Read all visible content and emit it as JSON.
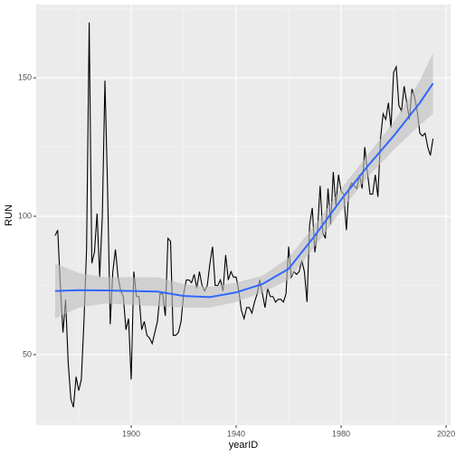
{
  "chart_data": {
    "type": "line",
    "x_label": "yearID",
    "y_label": "RUN",
    "x": [
      1871,
      1872,
      1873,
      1874,
      1875,
      1876,
      1877,
      1878,
      1879,
      1880,
      1881,
      1882,
      1883,
      1884,
      1885,
      1886,
      1887,
      1888,
      1889,
      1890,
      1891,
      1892,
      1893,
      1894,
      1895,
      1896,
      1897,
      1898,
      1899,
      1900,
      1901,
      1902,
      1903,
      1904,
      1905,
      1906,
      1907,
      1908,
      1909,
      1910,
      1911,
      1912,
      1913,
      1914,
      1915,
      1916,
      1917,
      1918,
      1919,
      1920,
      1921,
      1922,
      1923,
      1924,
      1925,
      1926,
      1927,
      1928,
      1929,
      1930,
      1931,
      1932,
      1933,
      1934,
      1935,
      1936,
      1937,
      1938,
      1939,
      1940,
      1941,
      1942,
      1943,
      1944,
      1945,
      1946,
      1947,
      1948,
      1949,
      1950,
      1951,
      1952,
      1953,
      1954,
      1955,
      1956,
      1957,
      1958,
      1959,
      1960,
      1961,
      1962,
      1963,
      1964,
      1965,
      1966,
      1967,
      1968,
      1969,
      1970,
      1971,
      1972,
      1973,
      1974,
      1975,
      1976,
      1977,
      1978,
      1979,
      1980,
      1981,
      1982,
      1983,
      1984,
      1985,
      1986,
      1987,
      1988,
      1989,
      1990,
      1991,
      1992,
      1993,
      1994,
      1995,
      1996,
      1997,
      1998,
      1999,
      2000,
      2001,
      2002,
      2003,
      2004,
      2005,
      2006,
      2007,
      2008,
      2009,
      2010,
      2011,
      2012,
      2013,
      2014,
      2015
    ],
    "values": [
      93,
      95,
      75,
      58,
      70,
      47,
      34,
      31,
      42,
      37,
      41,
      62,
      88,
      170,
      83,
      87,
      101,
      78,
      100,
      149,
      110,
      61,
      80,
      88,
      78,
      73,
      71,
      59,
      63,
      41,
      80,
      71,
      71,
      59,
      62,
      57,
      56,
      54,
      58,
      62,
      72,
      72,
      64,
      92,
      91,
      57,
      57,
      58,
      62,
      72,
      77,
      77,
      76,
      79,
      74,
      80,
      75,
      73,
      75,
      83,
      89,
      75,
      75,
      77,
      73,
      86,
      77,
      80,
      78,
      78,
      73,
      66,
      63,
      67,
      67,
      65,
      69,
      72,
      77,
      72,
      67,
      74,
      71,
      71,
      69,
      70,
      70,
      69,
      72,
      89,
      78,
      80,
      79,
      80,
      84,
      80,
      69,
      97,
      103,
      87,
      95,
      111,
      94,
      92,
      110,
      97,
      116,
      104,
      115,
      109,
      108,
      95,
      110,
      112,
      111,
      110,
      115,
      110,
      125,
      116,
      108,
      108,
      115,
      107,
      128,
      137,
      135,
      141,
      132,
      152,
      154,
      140,
      138,
      147,
      141,
      135,
      146,
      143,
      138,
      130,
      129,
      130,
      125,
      122,
      128
    ],
    "color": "#000000",
    "smooth": {
      "x": [
        1871,
        1880,
        1890,
        1900,
        1910,
        1920,
        1930,
        1940,
        1950,
        1960,
        1970,
        1980,
        1990,
        2000,
        2010,
        2015
      ],
      "values": [
        73,
        73.3,
        73.2,
        73,
        72.8,
        71.2,
        70.8,
        72.5,
        75.5,
        81,
        93,
        106,
        118,
        129,
        141,
        148
      ],
      "lower": [
        63,
        67,
        68.5,
        68,
        67.5,
        67,
        67,
        69,
        72.5,
        77,
        89,
        102,
        114,
        124,
        133,
        137
      ],
      "upper": [
        83,
        79.5,
        78,
        78,
        78,
        75.5,
        74.5,
        76,
        78.5,
        85,
        97,
        110,
        122,
        134,
        149,
        159
      ],
      "color": "#3366FF",
      "fill": "#BEBEBE"
    },
    "xlim": [
      1863.8,
      2021.7
    ],
    "xticks": [
      1900,
      1940,
      1980,
      2020
    ],
    "ylim": [
      24.5,
      176.5
    ],
    "yticks": [
      50,
      100,
      150
    ],
    "grid": true
  }
}
